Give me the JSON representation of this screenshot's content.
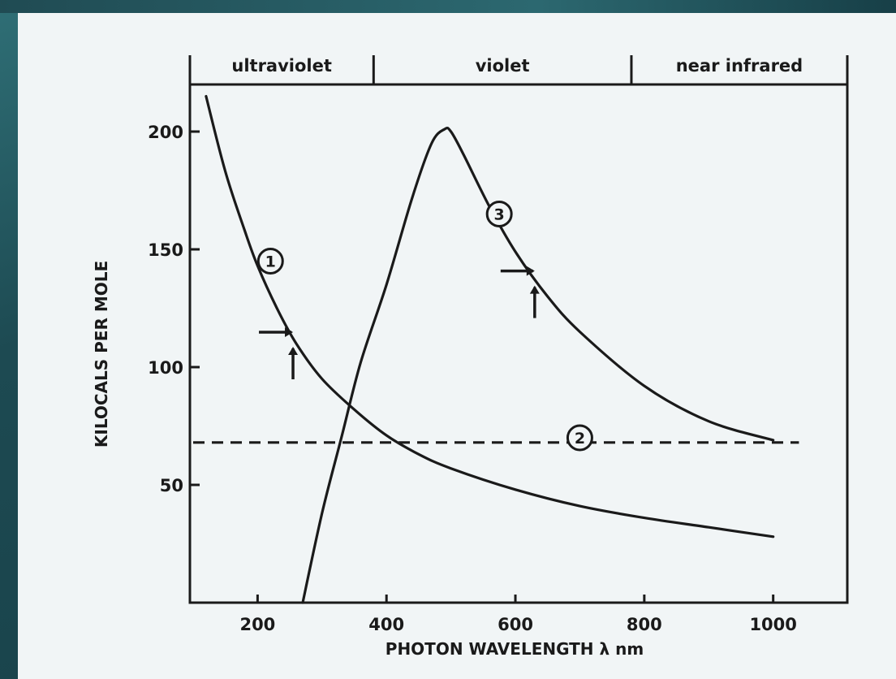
{
  "chart_data": {
    "type": "line",
    "title": "",
    "xlabel": "PHOTON WAVELENGTH  λ  nm",
    "ylabel": "KILOCALS PER MOLE",
    "xlim": [
      95,
      1115
    ],
    "ylim": [
      0,
      220
    ],
    "xticks": [
      200,
      400,
      600,
      800,
      1000
    ],
    "xtick_labels": [
      "200",
      "400",
      "600",
      "800",
      "1000"
    ],
    "yticks": [
      50,
      100,
      150,
      200
    ],
    "ytick_labels": [
      "50",
      "100",
      "150",
      "200"
    ],
    "grid": false,
    "legend": "none",
    "spectral_bands": [
      {
        "label": "ultraviolet",
        "from": 95,
        "to": 380
      },
      {
        "label": "violet",
        "from": 380,
        "to": 780
      },
      {
        "label": "near infrared",
        "from": 780,
        "to": 1115
      }
    ],
    "series": [
      {
        "label": "1",
        "style": "solid",
        "x": [
          120,
          150,
          180,
          200,
          230,
          260,
          300,
          350,
          400,
          450,
          500,
          600,
          700,
          800,
          900,
          1000
        ],
        "y": [
          215,
          183,
          158,
          143,
          125,
          110,
          95,
          82,
          71,
          63,
          57,
          48,
          41,
          36,
          32,
          28
        ]
      },
      {
        "label": "2",
        "style": "dashed",
        "x": [
          100,
          1040
        ],
        "y": [
          68,
          68
        ]
      },
      {
        "label": "3",
        "style": "solid",
        "x": [
          270,
          300,
          330,
          360,
          400,
          440,
          470,
          490,
          500,
          520,
          560,
          600,
          650,
          700,
          800,
          900,
          1000
        ],
        "y": [
          0,
          38,
          70,
          102,
          135,
          172,
          195,
          201,
          200,
          190,
          168,
          149,
          130,
          115,
          92,
          77,
          69
        ]
      }
    ],
    "annotations": [
      {
        "series": "1",
        "text": "①"
      },
      {
        "series": "2",
        "text": "②"
      },
      {
        "series": "3",
        "text": "③"
      }
    ],
    "markers": [
      {
        "type": "arrow-pair",
        "series": "1",
        "x": 260,
        "y": 110
      },
      {
        "type": "arrow-pair",
        "series": "3",
        "x": 635,
        "y": 136
      }
    ]
  }
}
